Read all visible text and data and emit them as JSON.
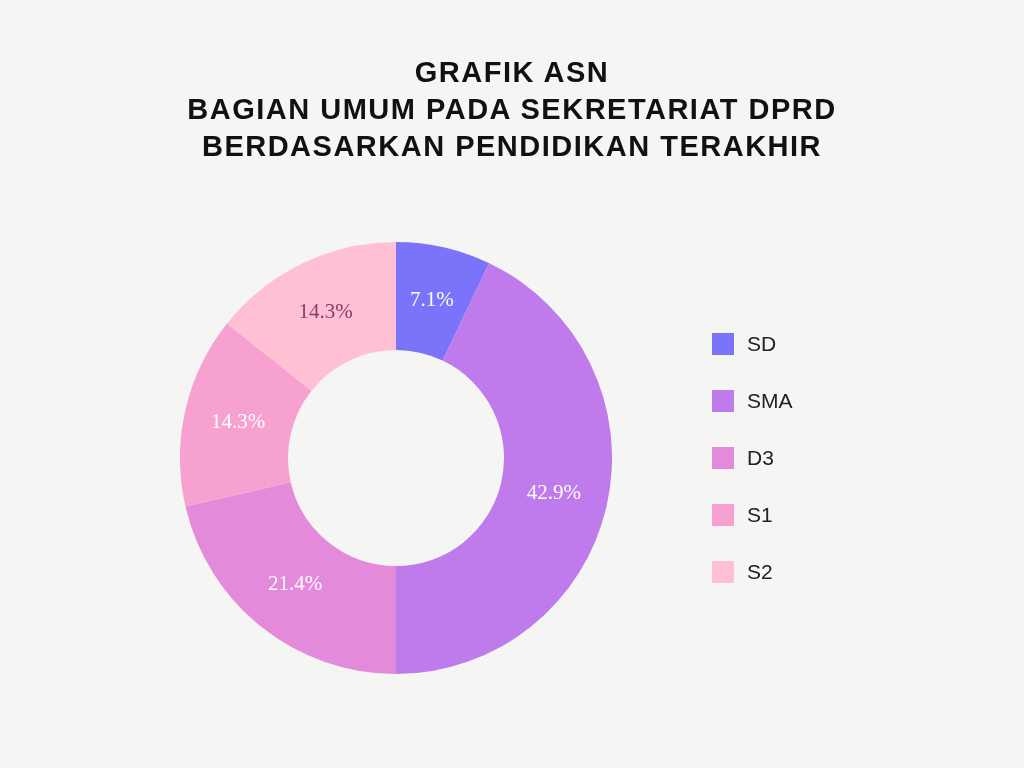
{
  "chart_data": {
    "type": "donut",
    "title": "GRAFIK ASN\nBAGIAN UMUM PADA SEKRETARIAT DPRD\nBERDASARKAN PENDIDIKAN TERAKHIR",
    "categories": [
      "SD",
      "SMA",
      "D3",
      "S1",
      "S2"
    ],
    "values": [
      7.1,
      42.9,
      21.4,
      14.3,
      14.3
    ],
    "value_labels": [
      "7.1%",
      "42.9%",
      "21.4%",
      "14.3%",
      "14.3%"
    ],
    "colors": [
      "#7b74fb",
      "#bf7aec",
      "#e48ada",
      "#f7a1d0",
      "#ffc0d3"
    ],
    "legend": "right"
  }
}
